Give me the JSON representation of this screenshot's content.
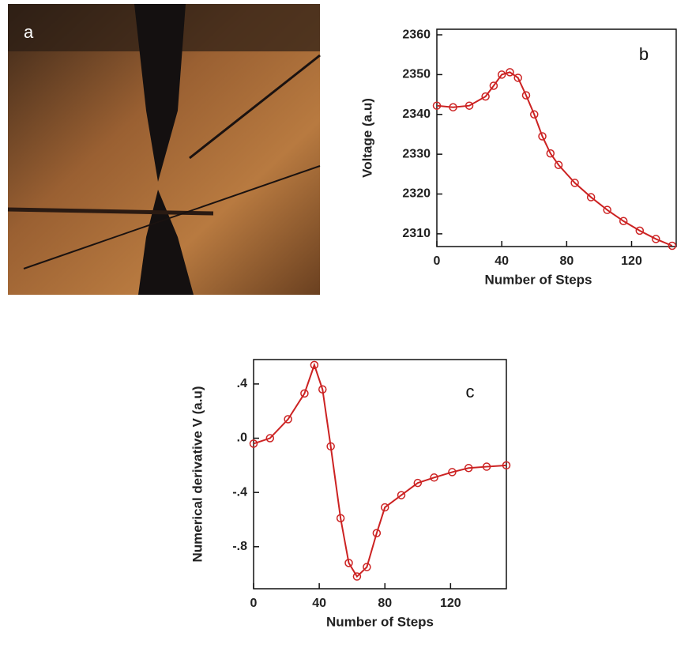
{
  "photo": {
    "label": "a"
  },
  "chart_data": [
    {
      "type": "line",
      "annotation": "b",
      "xlabel": "Number of Steps",
      "ylabel": "Voltage (a.u)",
      "color": "#cc2222",
      "x": [
        0,
        10,
        20,
        30,
        35,
        40,
        45,
        50,
        55,
        60,
        65,
        70,
        75,
        85,
        95,
        105,
        115,
        125,
        135,
        145
      ],
      "values": [
        2342.2,
        2341.8,
        2342.2,
        2344.5,
        2347.2,
        2350,
        2350.6,
        2349.2,
        2344.8,
        2340,
        2334.5,
        2330.2,
        2327.3,
        2322.8,
        2319.2,
        2316,
        2313.2,
        2310.8,
        2308.7,
        2307
      ],
      "xlim": [
        0,
        147.5
      ],
      "ylim": [
        2306.8,
        2361.4
      ],
      "xticks": [
        0,
        40,
        80,
        120
      ],
      "yticks": [
        2310,
        2320,
        2330,
        2340,
        2350,
        2360
      ]
    },
    {
      "type": "line",
      "annotation": "c",
      "xlabel": "Number of Steps",
      "ylabel": "Numerical derivative V (a.u)",
      "color": "#cc2222",
      "x": [
        0,
        10,
        21,
        31,
        37,
        42,
        47,
        53,
        58,
        63,
        69,
        75,
        80,
        90,
        100,
        110,
        121,
        131,
        142,
        154
      ],
      "values": [
        -0.04,
        0.0,
        0.14,
        0.33,
        0.54,
        0.36,
        -0.06,
        -0.59,
        -0.92,
        -1.02,
        -0.95,
        -0.7,
        -0.51,
        -0.42,
        -0.33,
        -0.29,
        -0.25,
        -0.22,
        -0.21,
        -0.2
      ],
      "xlim": [
        0,
        154
      ],
      "ylim": [
        -1.11,
        0.58
      ],
      "xticks": [
        0,
        40,
        80,
        120
      ],
      "yticks": [
        {
          "value": 0.4,
          "label": ".4"
        },
        {
          "value": 0.0,
          "label": ".0"
        },
        {
          "value": -0.4,
          "label": "-.4"
        },
        {
          "value": -0.8,
          "label": "-.8"
        }
      ]
    }
  ]
}
